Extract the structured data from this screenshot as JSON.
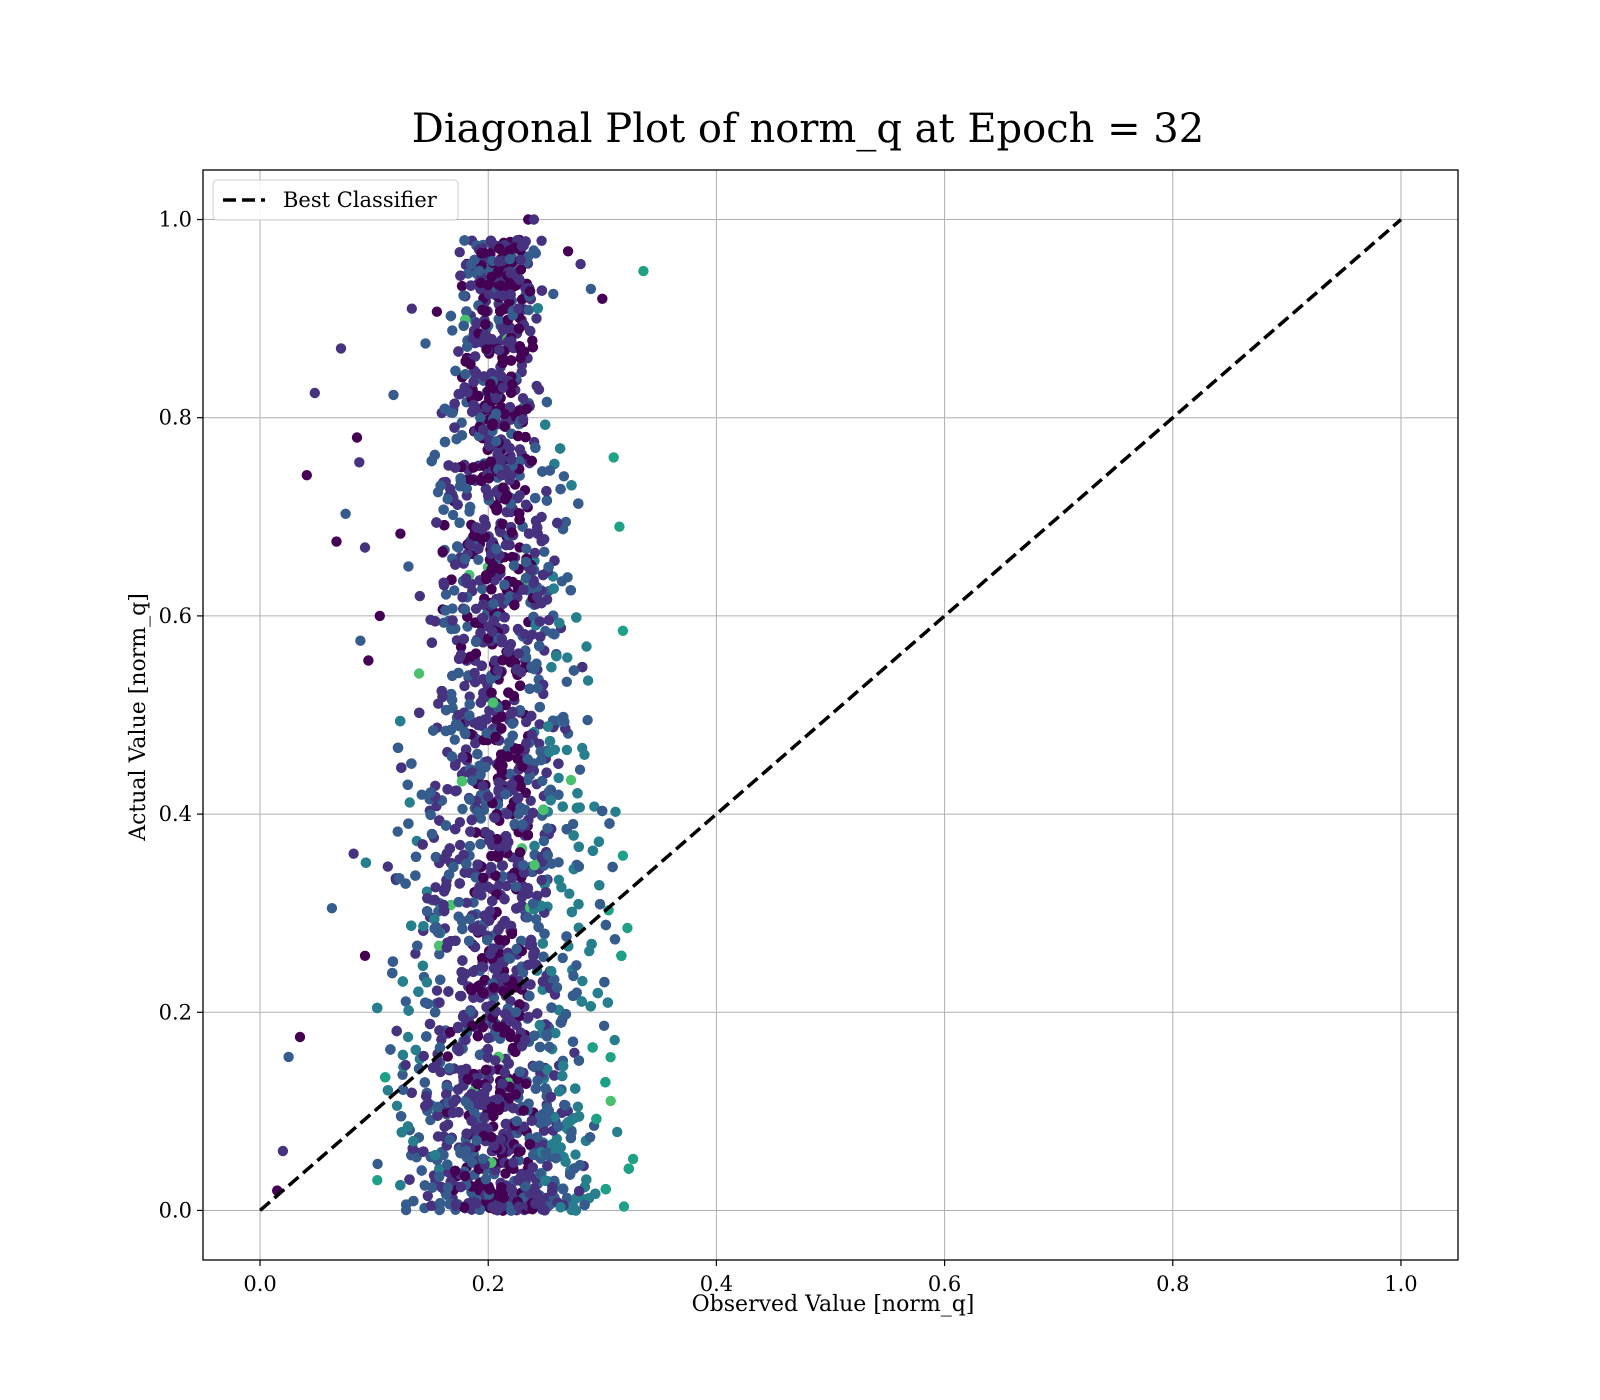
{
  "chart_data": {
    "type": "scatter",
    "title": "Diagonal Plot of norm_q at Epoch = 32",
    "xlabel": "Observed Value [norm_q]",
    "ylabel": "Actual Value [norm_q]",
    "xlim": [
      -0.05,
      1.05
    ],
    "ylim": [
      -0.05,
      1.05
    ],
    "xticks": [
      0.0,
      0.2,
      0.4,
      0.6,
      0.8,
      1.0
    ],
    "yticks": [
      0.0,
      0.2,
      0.4,
      0.6,
      0.8,
      1.0
    ],
    "xtick_labels": [
      "0.0",
      "0.2",
      "0.4",
      "0.6",
      "0.8",
      "1.0"
    ],
    "ytick_labels": [
      "0.0",
      "0.2",
      "0.4",
      "0.6",
      "0.8",
      "1.0"
    ],
    "grid": true,
    "legend": {
      "placement": "upper left",
      "entries": [
        {
          "label": "Best Classifier",
          "style": "dashed",
          "color": "#000000"
        }
      ]
    },
    "colormap": "viridis",
    "colormap_colors": [
      "#440154",
      "#46327e",
      "#365c8d",
      "#277f8e",
      "#1fa187",
      "#4ac16d"
    ],
    "reference_line": {
      "name": "Best Classifier",
      "x": [
        0.0,
        1.0
      ],
      "y": [
        0.0,
        1.0
      ],
      "style": "dashed",
      "color": "#000000"
    },
    "series": [
      {
        "points": [
          [
            0.041,
            0.742
          ],
          [
            0.048,
            0.825
          ],
          [
            0.063,
            0.305
          ],
          [
            0.067,
            0.675
          ],
          [
            0.071,
            0.87
          ],
          [
            0.075,
            0.703
          ],
          [
            0.085,
            0.78
          ],
          [
            0.087,
            0.755
          ],
          [
            0.088,
            0.575
          ],
          [
            0.092,
            0.257
          ],
          [
            0.092,
            0.669
          ],
          [
            0.103,
            0.047
          ],
          [
            0.105,
            0.6
          ],
          [
            0.112,
            0.347
          ],
          [
            0.117,
            0.823
          ],
          [
            0.123,
            0.683
          ],
          [
            0.133,
            0.91
          ],
          [
            0.145,
            0.875
          ],
          [
            0.155,
            0.907
          ],
          [
            0.175,
            0.967
          ],
          [
            0.185,
            0.955
          ],
          [
            0.194,
            0.966
          ],
          [
            0.203,
            0.977
          ],
          [
            0.219,
            0.96
          ],
          [
            0.235,
            1.0
          ],
          [
            0.24,
            1.0
          ],
          [
            0.257,
            0.925
          ],
          [
            0.27,
            0.968
          ],
          [
            0.281,
            0.955
          ],
          [
            0.29,
            0.93
          ],
          [
            0.3,
            0.92
          ],
          [
            0.31,
            0.76
          ],
          [
            0.315,
            0.69
          ],
          [
            0.318,
            0.585
          ],
          [
            0.322,
            0.285
          ],
          [
            0.318,
            0.358
          ],
          [
            0.327,
            0.052
          ],
          [
            0.319,
            0.004
          ],
          [
            0.336,
            0.948
          ],
          [
            0.015,
            0.02
          ],
          [
            0.02,
            0.06
          ],
          [
            0.025,
            0.155
          ],
          [
            0.035,
            0.175
          ],
          [
            0.2,
            0.418
          ],
          [
            0.215,
            0.42
          ],
          [
            0.16,
            0.665
          ],
          [
            0.14,
            0.62
          ],
          [
            0.13,
            0.65
          ],
          [
            0.095,
            0.555
          ],
          [
            0.082,
            0.36
          ]
        ]
      }
    ]
  }
}
